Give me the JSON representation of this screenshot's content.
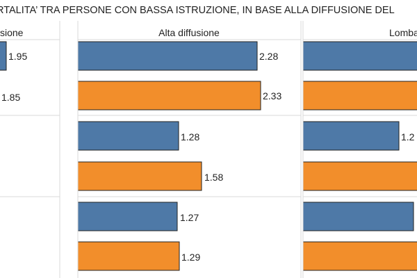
{
  "title": "RTALITA’ TRA PERSONE CON BASSA ISTRUZIONE, IN BASE ALLA DIFFUSIONE DEL",
  "colors": {
    "series_blue": "#4e79a7",
    "series_orange": "#f28e2b",
    "bar_border": "#222222",
    "separator": "#d9d9d9"
  },
  "chart_data": {
    "type": "bar",
    "orientation": "horizontal",
    "title": "RTALITA’ TRA PERSONE CON BASSA ISTRUZIONE, IN BASE ALLA DIFFUSIONE DEL",
    "panels": [
      {
        "header": "sione",
        "groups": [
          {
            "values": [
              1.95,
              1.85
            ]
          },
          {
            "values": [
              null,
              null
            ]
          },
          {
            "values": [
              null,
              null
            ]
          }
        ]
      },
      {
        "header": "Alta diffusione",
        "groups": [
          {
            "values": [
              2.28,
              2.33
            ]
          },
          {
            "values": [
              1.28,
              1.58
            ]
          },
          {
            "values": [
              1.27,
              1.29
            ]
          }
        ]
      },
      {
        "header": "Lomba",
        "groups": [
          {
            "values": [
              null,
              null
            ]
          },
          {
            "values": [
              null,
              null
            ]
          },
          {
            "values": [
              null,
              null
            ]
          }
        ]
      }
    ],
    "series": [
      {
        "color": "#4e79a7"
      },
      {
        "color": "#f28e2b"
      }
    ],
    "legend": "none",
    "grid": false
  }
}
